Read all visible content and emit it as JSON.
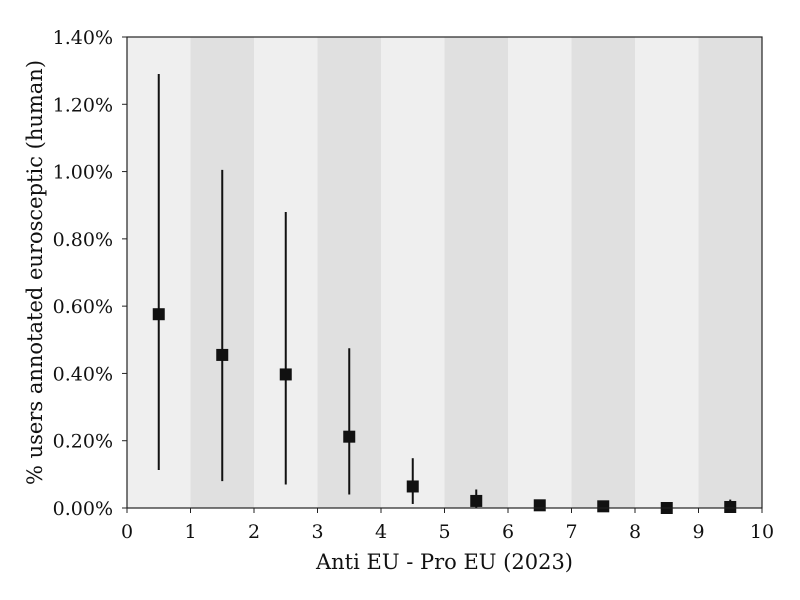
{
  "chart_data": {
    "type": "scatter",
    "title": "",
    "xlabel": "Anti EU - Pro EU (2023)",
    "ylabel": "% users annotated eurosceptic (human)",
    "xlim": [
      0,
      10
    ],
    "ylim": [
      0,
      1.4
    ],
    "x_ticks": [
      "0",
      "1",
      "2",
      "3",
      "4",
      "5",
      "6",
      "7",
      "8",
      "9",
      "10"
    ],
    "y_ticks": [
      "0.00%",
      "0.20%",
      "0.40%",
      "0.60%",
      "0.80%",
      "1.00%",
      "1.20%",
      "1.40%"
    ],
    "y_tick_values": [
      0,
      0.2,
      0.4,
      0.6,
      0.8,
      1.0,
      1.2,
      1.4
    ],
    "background_bands": "alternating light and darker gray per unit interval",
    "marker": "square",
    "marker_color": "#111111",
    "band_colors": [
      "#efefef",
      "#e0e0e0"
    ],
    "series": [
      {
        "x": [
          0.5,
          1.5,
          2.5,
          3.5,
          4.5,
          5.5,
          6.5,
          7.5,
          8.5,
          9.5
        ],
        "y": [
          0.576,
          0.455,
          0.397,
          0.212,
          0.064,
          0.021,
          0.008,
          0.005,
          0.0,
          0.003
        ],
        "err_low": [
          0.113,
          0.08,
          0.07,
          0.04,
          0.012,
          0.0,
          0.0,
          0.0,
          0.0,
          0.0
        ],
        "err_high": [
          1.29,
          1.005,
          0.88,
          0.475,
          0.148,
          0.055,
          0.012,
          0.01,
          0.0,
          0.025
        ]
      }
    ]
  }
}
